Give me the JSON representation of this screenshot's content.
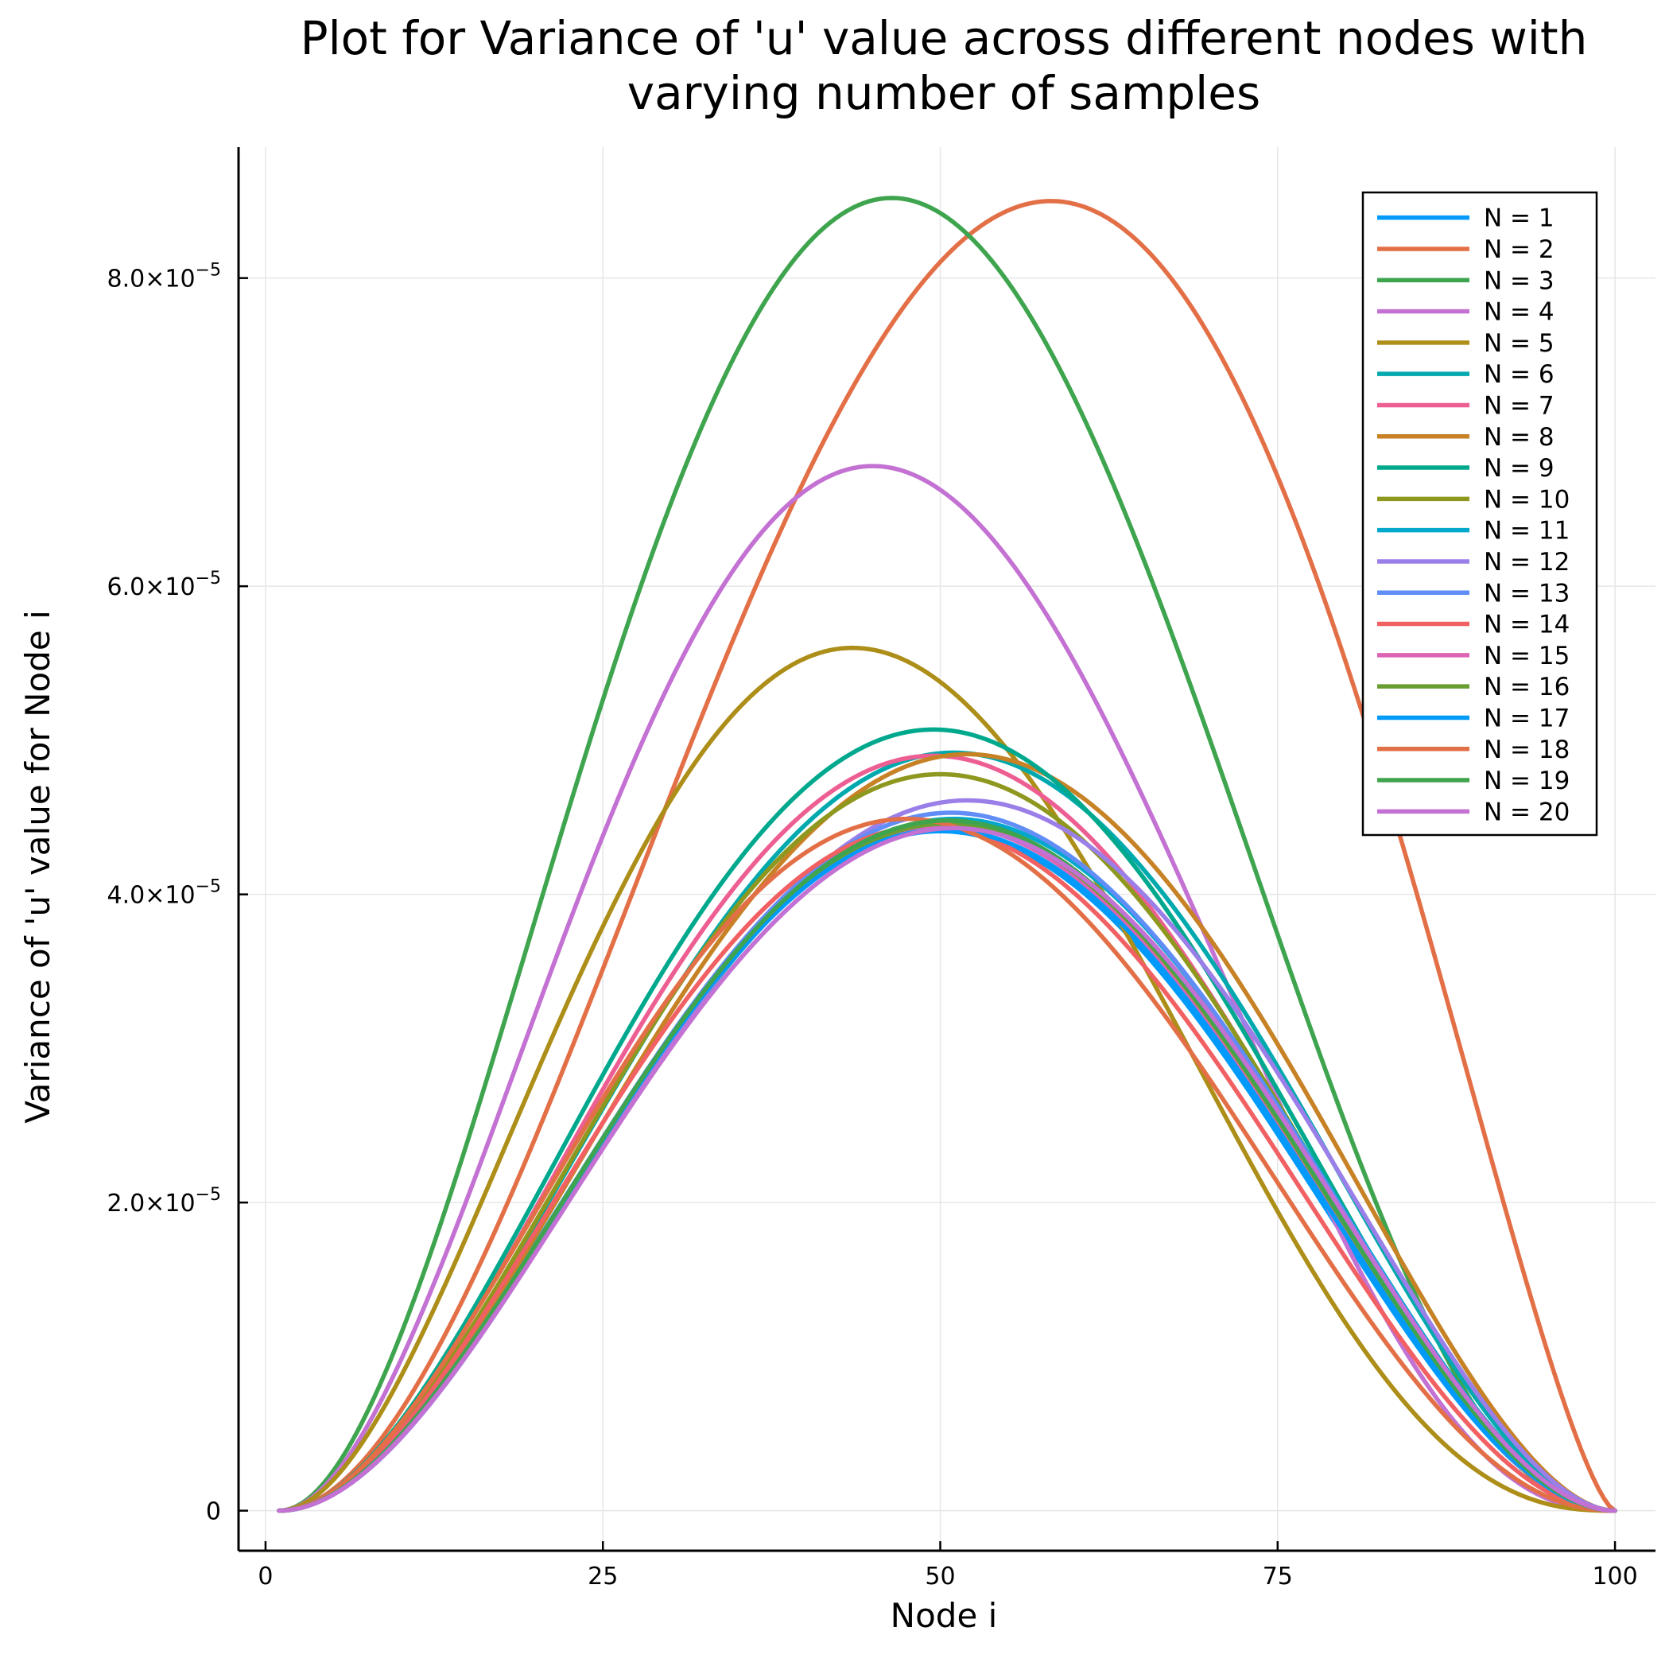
{
  "chart_data": {
    "type": "line",
    "title": [
      "Plot for Variance of 'u' value across different nodes with",
      "varying number of samples"
    ],
    "xlabel": "Node i",
    "ylabel": "Variance of 'u' value for Node i",
    "xlim": [
      -2,
      103
    ],
    "ylim": [
      -2.6e-06,
      8.85e-05
    ],
    "x_range": [
      1,
      100
    ],
    "xticks": [
      {
        "value": 0,
        "label": "0"
      },
      {
        "value": 25,
        "label": "25"
      },
      {
        "value": 50,
        "label": "50"
      },
      {
        "value": 75,
        "label": "75"
      },
      {
        "value": 100,
        "label": "100"
      }
    ],
    "yticks": [
      {
        "value": 0,
        "label": "0",
        "mantissa": "",
        "exponent": ""
      },
      {
        "value": 2e-05,
        "label": "2.0×10⁻⁵",
        "mantissa": "2.0×10",
        "exponent": "−5"
      },
      {
        "value": 4e-05,
        "label": "4.0×10⁻⁵",
        "mantissa": "4.0×10",
        "exponent": "−5"
      },
      {
        "value": 6e-05,
        "label": "6.0×10⁻⁵",
        "mantissa": "6.0×10",
        "exponent": "−5"
      },
      {
        "value": 8e-05,
        "label": "8.0×10⁻⁵",
        "mantissa": "8.0×10",
        "exponent": "−5"
      }
    ],
    "grid": true,
    "legend_position": "top-right",
    "series": [
      {
        "name": "N = 1",
        "color": "#009AFA",
        "peak_x": 50.0,
        "peak_y": 4.41e-05
      },
      {
        "name": "N = 2",
        "color": "#E36F47",
        "peak_x": 58.2,
        "peak_y": 8.5e-05
      },
      {
        "name": "N = 3",
        "color": "#3EA44E",
        "peak_x": 46.4,
        "peak_y": 8.52e-05
      },
      {
        "name": "N = 4",
        "color": "#C371D2",
        "peak_x": 45.0,
        "peak_y": 6.78e-05
      },
      {
        "name": "N = 5",
        "color": "#AC8E18",
        "peak_x": 43.5,
        "peak_y": 5.6e-05
      },
      {
        "name": "N = 6",
        "color": "#00A9AD",
        "peak_x": 51.0,
        "peak_y": 4.92e-05
      },
      {
        "name": "N = 7",
        "color": "#ED5E93",
        "peak_x": 49.5,
        "peak_y": 4.9e-05
      },
      {
        "name": "N = 8",
        "color": "#C68225",
        "peak_x": 52.0,
        "peak_y": 4.91e-05
      },
      {
        "name": "N = 9",
        "color": "#00A98D",
        "peak_x": 49.5,
        "peak_y": 5.07e-05
      },
      {
        "name": "N = 10",
        "color": "#8E971E",
        "peak_x": 50.0,
        "peak_y": 4.78e-05
      },
      {
        "name": "N = 11",
        "color": "#00A8CB",
        "peak_x": 51.0,
        "peak_y": 4.49e-05
      },
      {
        "name": "N = 12",
        "color": "#9B7FE9",
        "peak_x": 52.0,
        "peak_y": 4.61e-05
      },
      {
        "name": "N = 13",
        "color": "#618DF6",
        "peak_x": 50.8,
        "peak_y": 4.53e-05
      },
      {
        "name": "N = 14",
        "color": "#F16063",
        "peak_x": 49.0,
        "peak_y": 4.44e-05
      },
      {
        "name": "N = 15",
        "color": "#DD64B5",
        "peak_x": 50.3,
        "peak_y": 4.45e-05
      },
      {
        "name": "N = 16",
        "color": "#6B9E32",
        "peak_x": 50.5,
        "peak_y": 4.46e-05
      },
      {
        "name": "N = 17",
        "color": "#009AFA",
        "peak_x": 50.2,
        "peak_y": 4.42e-05
      },
      {
        "name": "N = 18",
        "color": "#E36F47",
        "peak_x": 47.5,
        "peak_y": 4.49e-05
      },
      {
        "name": "N = 19",
        "color": "#3EA44E",
        "peak_x": 50.5,
        "peak_y": 4.48e-05
      },
      {
        "name": "N = 20",
        "color": "#C371D2",
        "peak_x": 51.0,
        "peak_y": 4.43e-05
      }
    ]
  }
}
